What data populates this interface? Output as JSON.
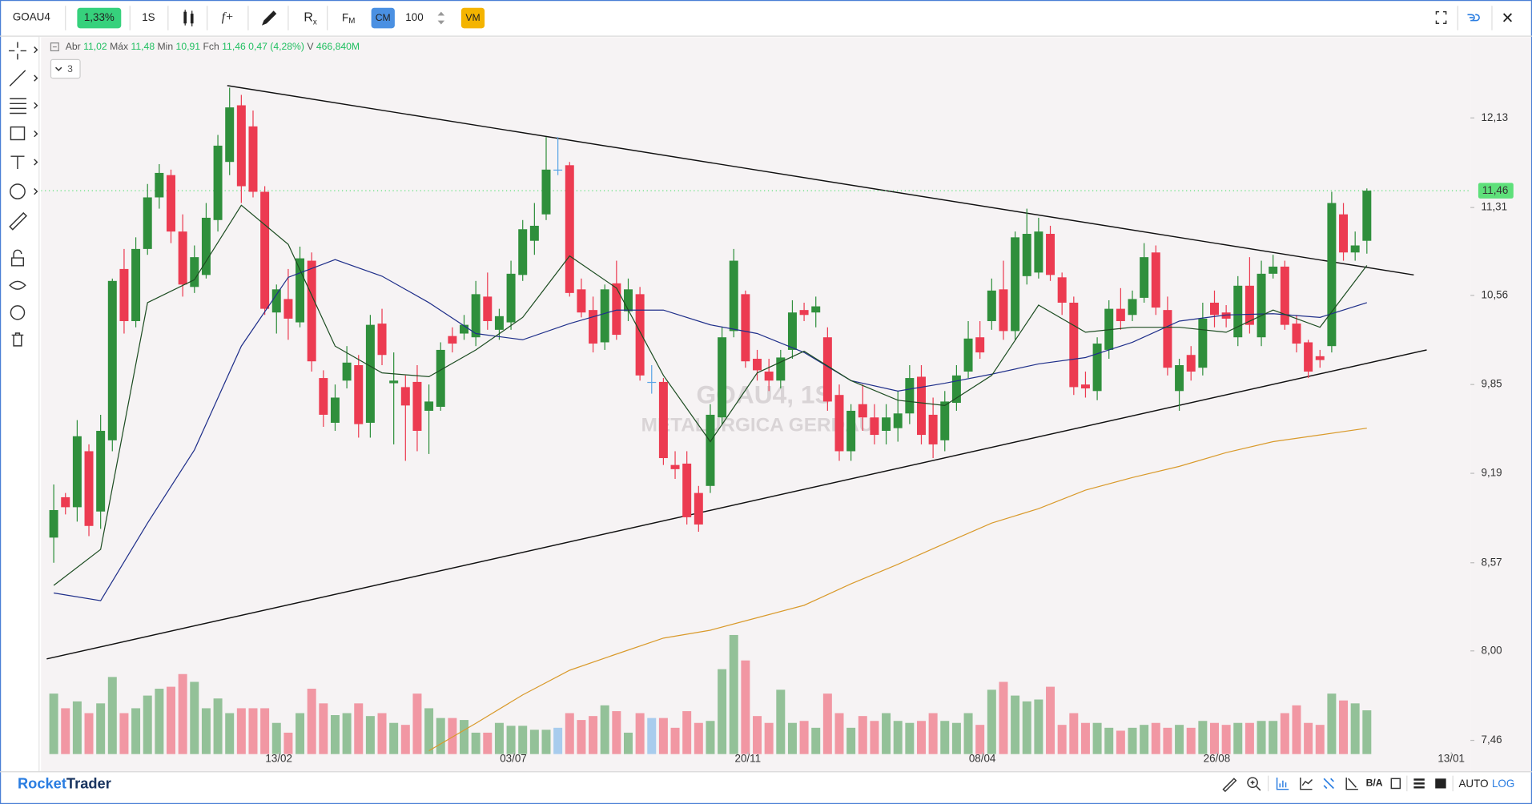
{
  "toolbar": {
    "symbol": "GOAU4",
    "change": "1,33%",
    "period": "1S",
    "function": "f+",
    "replay": "R",
    "replay_sub": "x",
    "fm": "F",
    "fm_sub": "M",
    "cm": "CM",
    "count": "100",
    "vm": "VM"
  },
  "legend": {
    "open_label": "Abr",
    "open": "11,02",
    "high_label": "Máx",
    "high": "11,48",
    "low_label": "Min",
    "low": "10,91",
    "close_label": "Fch",
    "close": "11,46",
    "change": "0,47 (4,28%)",
    "volume_label": "V",
    "volume": "466,840M"
  },
  "collapsed_count": "3",
  "footer": {
    "brand_a": "Rocket",
    "brand_b": "Trader",
    "book": "B/A",
    "auto": "AUTO",
    "log": "LOG"
  },
  "chart_data": {
    "type": "candlestick",
    "log": true,
    "grid": false,
    "watermark": [
      "GOAU4, 1S",
      "METALURGICA GERDAU"
    ],
    "up_color": "#2f8f3c",
    "down_color": "#ec3b51",
    "doji_color": "#5aa5e6",
    "open": [
      8.74,
      9.02,
      8.95,
      9.35,
      8.92,
      9.43,
      10.78,
      10.35,
      10.95,
      11.4,
      11.6,
      11.1,
      10.63,
      10.73,
      11.2,
      11.72,
      12.25,
      12.05,
      11.45,
      10.42,
      10.53,
      10.34,
      10.85,
      9.9,
      9.56,
      9.88,
      10.0,
      9.56,
      10.33,
      9.86,
      9.83,
      9.87,
      9.65,
      9.68,
      10.23,
      10.25,
      10.22,
      10.55,
      10.28,
      10.34,
      10.73,
      11.02,
      11.25,
      11.65,
      11.69,
      10.61,
      10.44,
      10.18,
      10.66,
      10.43,
      10.57,
      9.87,
      9.87,
      9.25,
      9.26,
      9.05,
      9.1,
      9.6,
      10.27,
      10.57,
      10.05,
      9.95,
      9.88,
      10.12,
      10.44,
      10.42,
      10.22,
      9.77,
      9.35,
      9.7,
      9.6,
      9.5,
      9.52,
      9.63,
      9.91,
      9.62,
      9.43,
      9.71,
      9.95,
      10.22,
      10.35,
      10.61,
      10.27,
      10.72,
      10.75,
      11.08,
      10.71,
      10.5,
      9.85,
      9.8,
      10.12,
      10.45,
      10.4,
      10.54,
      10.92,
      10.44,
      9.8,
      10.08,
      9.98,
      10.5,
      10.42,
      10.22,
      10.64,
      10.22,
      10.74,
      10.8,
      10.33,
      10.18,
      10.07,
      10.15,
      11.25,
      10.92,
      11.02
    ],
    "high": [
      9.11,
      9.05,
      9.58,
      9.4,
      9.62,
      10.7,
      10.95,
      11.05,
      11.52,
      11.7,
      11.65,
      11.25,
      10.98,
      11.35,
      11.97,
      12.42,
      12.35,
      12.2,
      11.5,
      10.65,
      10.78,
      10.97,
      10.92,
      9.96,
      9.85,
      10.15,
      10.08,
      10.4,
      10.45,
      10.1,
      9.92,
      10.0,
      9.85,
      10.18,
      10.3,
      10.4,
      10.68,
      10.75,
      10.45,
      10.85,
      11.2,
      11.35,
      11.95,
      11.95,
      11.72,
      10.7,
      10.55,
      10.65,
      10.85,
      10.7,
      10.63,
      10.0,
      9.9,
      9.35,
      9.35,
      9.1,
      9.7,
      10.3,
      10.95,
      10.6,
      10.12,
      10.05,
      10.12,
      10.52,
      10.5,
      10.55,
      10.3,
      9.85,
      9.7,
      9.85,
      9.7,
      9.7,
      9.8,
      10.0,
      10.0,
      9.75,
      9.8,
      10.0,
      10.35,
      10.35,
      10.7,
      10.85,
      11.1,
      11.3,
      11.22,
      11.15,
      10.75,
      10.55,
      9.95,
      10.22,
      10.52,
      10.62,
      10.6,
      11.0,
      10.98,
      10.55,
      10.05,
      10.15,
      10.5,
      10.6,
      10.48,
      10.72,
      10.88,
      10.85,
      10.9,
      10.85,
      10.4,
      10.2,
      10.12,
      11.45,
      11.35,
      11.1,
      11.48
    ],
    "low": [
      8.57,
      8.9,
      8.85,
      8.75,
      8.8,
      9.35,
      10.25,
      10.3,
      10.9,
      11.3,
      11.0,
      10.55,
      10.58,
      10.7,
      11.1,
      11.6,
      11.35,
      11.4,
      10.4,
      10.25,
      10.2,
      10.3,
      9.95,
      9.53,
      9.5,
      9.82,
      9.45,
      9.45,
      10.0,
      9.4,
      9.28,
      9.35,
      9.33,
      9.65,
      10.1,
      10.2,
      10.15,
      10.28,
      10.2,
      10.28,
      10.68,
      10.9,
      11.2,
      11.6,
      10.55,
      10.38,
      10.1,
      10.12,
      10.2,
      10.35,
      9.88,
      9.78,
      9.25,
      9.15,
      8.83,
      8.78,
      9.05,
      9.55,
      10.22,
      9.98,
      9.88,
      9.8,
      9.82,
      10.05,
      10.35,
      10.3,
      9.65,
      9.28,
      9.28,
      9.5,
      9.4,
      9.4,
      9.42,
      9.55,
      9.4,
      9.3,
      9.35,
      9.65,
      9.9,
      10.05,
      10.28,
      10.2,
      10.2,
      10.65,
      10.7,
      10.68,
      10.4,
      9.77,
      9.75,
      9.73,
      10.05,
      10.28,
      10.35,
      10.5,
      10.4,
      9.92,
      9.65,
      9.88,
      9.92,
      10.3,
      10.3,
      10.15,
      10.25,
      10.15,
      10.7,
      10.28,
      10.1,
      9.9,
      9.98,
      10.1,
      10.85,
      10.85,
      10.91
    ],
    "close": [
      8.93,
      8.95,
      9.46,
      8.82,
      9.5,
      10.68,
      10.35,
      10.95,
      11.4,
      11.62,
      11.1,
      10.65,
      10.88,
      11.22,
      11.87,
      12.23,
      11.5,
      11.45,
      10.45,
      10.61,
      10.37,
      10.87,
      10.03,
      9.62,
      9.75,
      10.02,
      9.55,
      10.32,
      10.08,
      9.88,
      9.69,
      9.5,
      9.72,
      10.12,
      10.17,
      10.32,
      10.57,
      10.35,
      10.39,
      10.74,
      11.12,
      11.15,
      11.65,
      11.65,
      10.58,
      10.42,
      10.17,
      10.61,
      10.24,
      10.61,
      9.92,
      9.87,
      9.3,
      9.22,
      8.88,
      8.83,
      9.62,
      10.22,
      10.85,
      10.03,
      9.96,
      9.88,
      10.06,
      10.42,
      10.4,
      10.47,
      9.72,
      9.35,
      9.65,
      9.6,
      9.47,
      9.6,
      9.63,
      9.9,
      9.47,
      9.4,
      9.72,
      9.92,
      10.21,
      10.1,
      10.6,
      10.27,
      11.05,
      11.08,
      11.1,
      10.73,
      10.5,
      9.83,
      9.82,
      10.17,
      10.45,
      10.35,
      10.53,
      10.88,
      10.46,
      9.98,
      10.0,
      9.95,
      10.37,
      10.4,
      10.37,
      10.64,
      10.32,
      10.74,
      10.8,
      10.32,
      10.17,
      9.95,
      10.04,
      11.35,
      10.92,
      10.98,
      11.46
    ],
    "volume": [
      645,
      489,
      562,
      437,
      541,
      822,
      437,
      489,
      624,
      697,
      718,
      853,
      770,
      489,
      593,
      437,
      489,
      489,
      489,
      333,
      229,
      437,
      697,
      541,
      416,
      437,
      541,
      406,
      437,
      333,
      312,
      645,
      489,
      385,
      385,
      364,
      229,
      229,
      333,
      302,
      302,
      260,
      260,
      281,
      437,
      364,
      406,
      520,
      458,
      229,
      437,
      385,
      385,
      281,
      458,
      333,
      354,
      905,
      1269,
      998,
      406,
      333,
      686,
      333,
      354,
      281,
      645,
      437,
      281,
      406,
      354,
      437,
      354,
      333,
      354,
      437,
      354,
      333,
      437,
      312,
      686,
      770,
      624,
      562,
      582,
      718,
      312,
      437,
      333,
      333,
      281,
      250,
      281,
      312,
      333,
      281,
      312,
      281,
      354,
      333,
      312,
      333,
      333,
      354,
      354,
      437,
      520,
      333,
      312,
      645,
      572,
      541,
      466.84
    ],
    "ylim": [
      7.38,
      12.92
    ],
    "yticks": [
      {
        "value": 7.46,
        "label": "7,46"
      },
      {
        "value": 8.0,
        "label": "8,00"
      },
      {
        "value": 8.57,
        "label": "8,57"
      },
      {
        "value": 9.19,
        "label": "9,19"
      },
      {
        "value": 9.85,
        "label": "9,85"
      },
      {
        "value": 10.56,
        "label": "10,56"
      },
      {
        "value": 11.31,
        "label": "11,31"
      },
      {
        "value": 12.13,
        "label": "12,13"
      }
    ],
    "xticks": [
      {
        "value": 19.2,
        "label": "13/02"
      },
      {
        "value": 39.2,
        "label": "03/07"
      },
      {
        "value": 59.2,
        "label": "20/11"
      },
      {
        "value": 79.2,
        "label": "08/04"
      },
      {
        "value": 99.2,
        "label": "26/08"
      },
      {
        "value": 119.2,
        "label": "13/01"
      }
    ],
    "last_price": {
      "value": 11.46,
      "label": "11,46",
      "color": "#5ee07a"
    },
    "moving_averages": [
      {
        "color": "#d99a2b",
        "x": [
          32,
          36,
          40,
          44,
          48,
          52,
          56,
          60,
          64,
          68,
          72,
          76,
          80,
          84,
          88,
          92,
          96,
          100,
          104,
          108,
          112
        ],
        "values": [
          7.4,
          7.56,
          7.73,
          7.88,
          7.98,
          8.08,
          8.13,
          8.21,
          8.29,
          8.43,
          8.56,
          8.7,
          8.84,
          8.94,
          9.07,
          9.16,
          9.24,
          9.34,
          9.42,
          9.47,
          9.52
        ]
      },
      {
        "color": "#1f2f8a",
        "x": [
          0,
          4,
          8,
          12,
          16,
          20,
          24,
          28,
          32,
          36,
          40,
          44,
          48,
          52,
          56,
          60,
          64,
          68,
          72,
          76,
          80,
          84,
          88,
          92,
          96,
          100,
          104,
          108,
          112
        ],
        "values": [
          8.37,
          8.32,
          8.84,
          9.36,
          10.15,
          10.71,
          10.86,
          10.72,
          10.5,
          10.25,
          10.2,
          10.33,
          10.44,
          10.44,
          10.32,
          10.25,
          10.1,
          9.88,
          9.8,
          9.86,
          9.93,
          10.01,
          10.06,
          10.18,
          10.35,
          10.4,
          10.41,
          10.38,
          10.5
        ]
      },
      {
        "color": "#1d4d22",
        "x": [
          0,
          4,
          8,
          12,
          16,
          20,
          24,
          28,
          32,
          36,
          40,
          44,
          48,
          52,
          56,
          60,
          64,
          68,
          72,
          76,
          80,
          84,
          88,
          92,
          96,
          100,
          104,
          108,
          112
        ],
        "values": [
          8.42,
          8.66,
          10.5,
          10.69,
          11.33,
          10.99,
          10.15,
          9.94,
          9.91,
          10.12,
          10.38,
          10.89,
          10.62,
          9.92,
          9.42,
          9.94,
          10.11,
          9.88,
          9.73,
          9.69,
          9.92,
          10.48,
          10.26,
          10.3,
          10.3,
          10.26,
          10.44,
          10.3,
          10.81
        ]
      }
    ],
    "trendlines": [
      {
        "color": "#111111",
        "x": [
          14.8,
          116
        ],
        "values": [
          12.44,
          10.73
        ]
      },
      {
        "color": "#111111",
        "x": [
          -0.6,
          117.1
        ],
        "values": [
          7.95,
          10.12
        ]
      }
    ]
  }
}
